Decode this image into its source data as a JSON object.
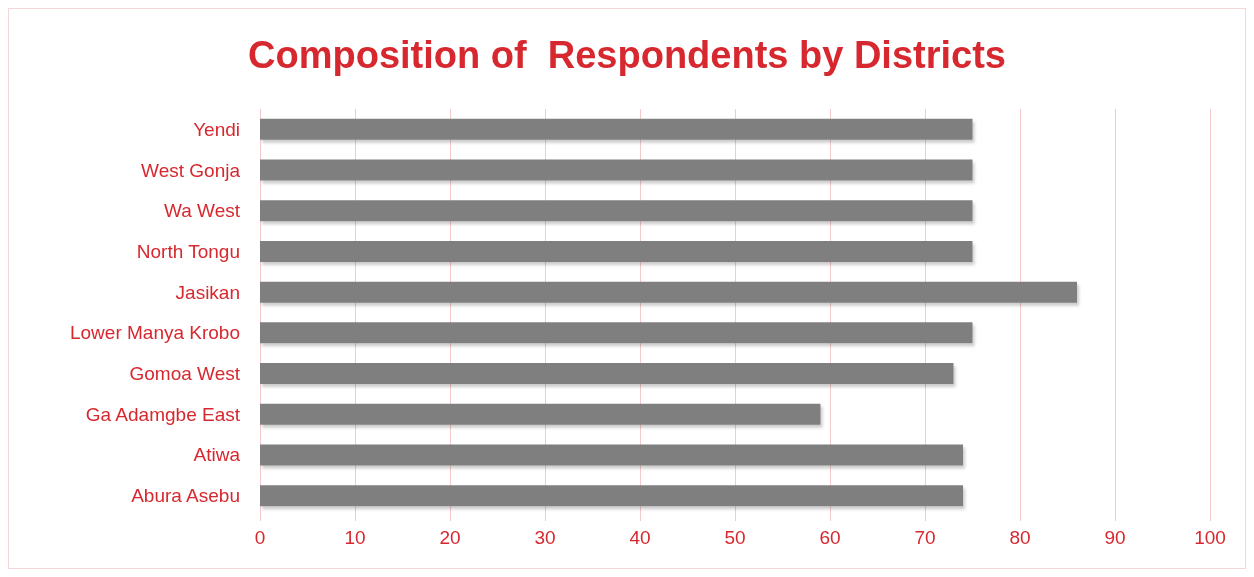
{
  "chart_data": {
    "type": "bar",
    "orientation": "horizontal",
    "title": "Composition of  Respondents by Districts",
    "categories": [
      "Yendi",
      "West Gonja",
      "Wa West",
      "North Tongu",
      "Jasikan",
      "Lower Manya Krobo",
      "Gomoa West",
      "Ga Adamgbe East",
      "Atiwa",
      "Abura Asebu"
    ],
    "values": [
      75,
      75,
      75,
      75,
      86,
      75,
      73,
      59,
      74,
      74
    ],
    "color": "#7f7f7f",
    "xlim": [
      0,
      100
    ],
    "xticks": [
      0,
      10,
      20,
      30,
      40,
      50,
      60,
      70,
      80,
      90,
      100
    ],
    "grid": "x"
  }
}
